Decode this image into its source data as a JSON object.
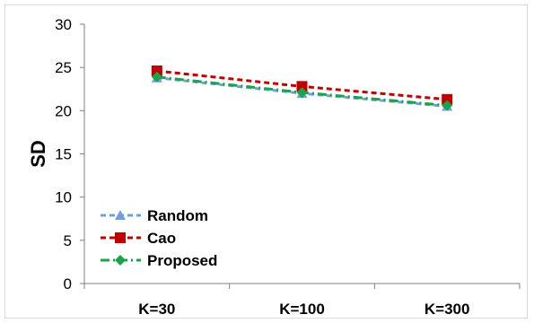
{
  "chart_data": {
    "type": "line",
    "title": "",
    "xlabel": "",
    "ylabel": "SD",
    "categories": [
      "K=30",
      "K=100",
      "K=300"
    ],
    "ylim": [
      0,
      30
    ],
    "yticks": [
      0,
      5,
      10,
      15,
      20,
      25,
      30
    ],
    "grid": false,
    "legend_position": "bottom-left",
    "series": [
      {
        "name": "Random",
        "values": [
          23.8,
          22.0,
          20.5
        ],
        "color": "#6fa0dc",
        "marker": "triangle",
        "dash": "dashed"
      },
      {
        "name": "Cao",
        "values": [
          24.6,
          22.8,
          21.3
        ],
        "color": "#c00000",
        "marker": "square",
        "dash": "dashed"
      },
      {
        "name": "Proposed",
        "values": [
          23.9,
          22.1,
          20.6
        ],
        "color": "#1aa34a",
        "marker": "diamond",
        "dash": "dash-dot"
      }
    ]
  }
}
